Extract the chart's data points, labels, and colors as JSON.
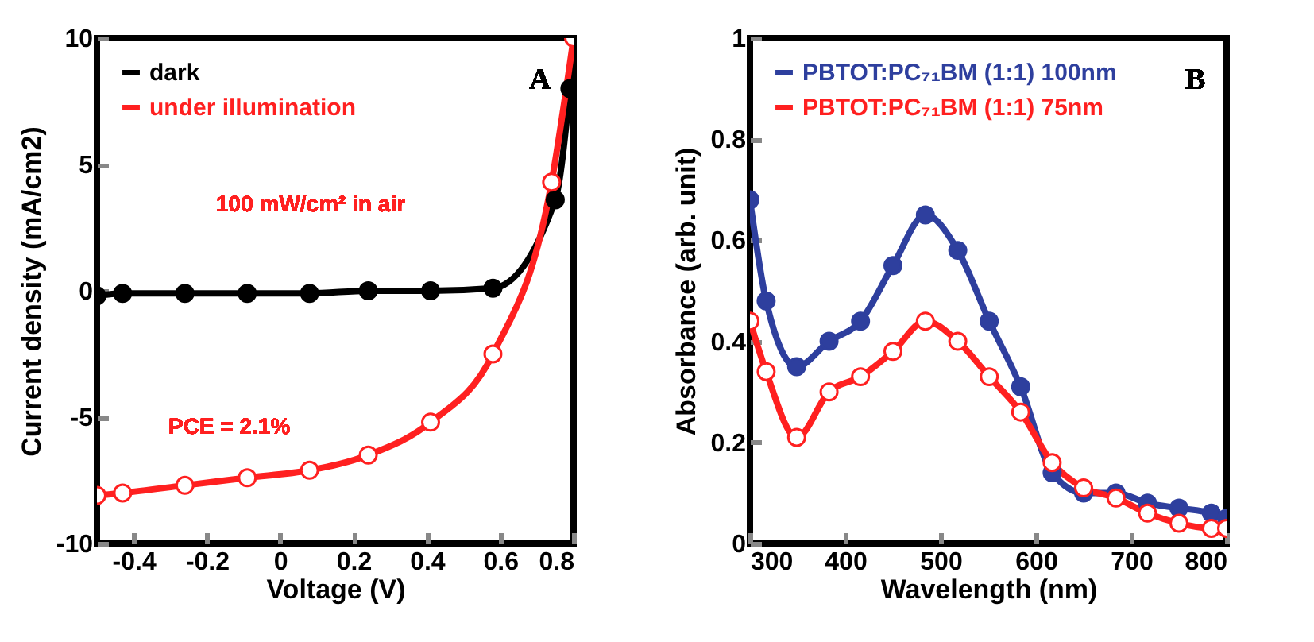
{
  "chart_data": [
    {
      "type": "line",
      "xlabel": "Voltage (V)",
      "ylabel": "Current density (mA/cm2)",
      "xlim": [
        -0.5,
        0.8
      ],
      "ylim": [
        -10,
        10
      ],
      "xticks": [
        -0.4,
        -0.2,
        0,
        0.2,
        0.4,
        0.6,
        0.8
      ],
      "yticks": [
        -10,
        -5,
        0,
        5,
        10
      ],
      "legend": "top left",
      "marker": "circle",
      "grid": false,
      "annotations": [
        "A",
        "100 mW/cm² in air",
        "PCE = 2.1%"
      ],
      "series": [
        {
          "name": "dark",
          "color": "#000000",
          "x": [
            -0.5,
            -0.43,
            -0.26,
            -0.09,
            0.08,
            0.24,
            0.41,
            0.58,
            0.75,
            0.79
          ],
          "values": [
            -0.2,
            -0.1,
            -0.1,
            -0.1,
            -0.1,
            0,
            0,
            0.1,
            3.6,
            8
          ]
        },
        {
          "name": "under illumination",
          "color": "#ff2020",
          "x": [
            -0.5,
            -0.43,
            -0.26,
            -0.09,
            0.08,
            0.24,
            0.41,
            0.58,
            0.74,
            0.8
          ],
          "values": [
            -8.1,
            -8.0,
            -7.7,
            -7.4,
            -7.1,
            -6.5,
            -5.2,
            -2.5,
            4.3,
            10
          ]
        }
      ]
    },
    {
      "type": "line",
      "xlabel": "Wavelength (nm)",
      "ylabel": "Absorbance (arb. unit)",
      "xlim": [
        300,
        800
      ],
      "ylim": [
        0,
        1
      ],
      "xticks": [
        300,
        400,
        500,
        600,
        700,
        800
      ],
      "yticks": [
        0,
        0.2,
        0.4,
        0.6,
        0.8,
        1
      ],
      "legend": "top left",
      "marker": "circle",
      "grid": false,
      "annotations": [
        "B"
      ],
      "series": [
        {
          "name": "PBTOT:PC₇₁BM (1:1)  100nm",
          "color": "#2e3f9e",
          "x": [
            300,
            317,
            349,
            383,
            416,
            450,
            484,
            518,
            551,
            584,
            617,
            650,
            684,
            717,
            750,
            784,
            800
          ],
          "values": [
            0.68,
            0.48,
            0.35,
            0.4,
            0.44,
            0.55,
            0.65,
            0.58,
            0.44,
            0.31,
            0.14,
            0.1,
            0.1,
            0.08,
            0.07,
            0.06,
            0.05
          ]
        },
        {
          "name": "PBTOT:PC₇₁BM (1:1)  75nm",
          "color": "#ff2020",
          "x": [
            300,
            317,
            349,
            383,
            416,
            450,
            484,
            518,
            551,
            584,
            617,
            650,
            684,
            717,
            750,
            784,
            800
          ],
          "values": [
            0.44,
            0.34,
            0.21,
            0.3,
            0.33,
            0.38,
            0.44,
            0.4,
            0.33,
            0.26,
            0.16,
            0.11,
            0.09,
            0.06,
            0.04,
            0.03,
            0.03
          ]
        }
      ]
    }
  ]
}
